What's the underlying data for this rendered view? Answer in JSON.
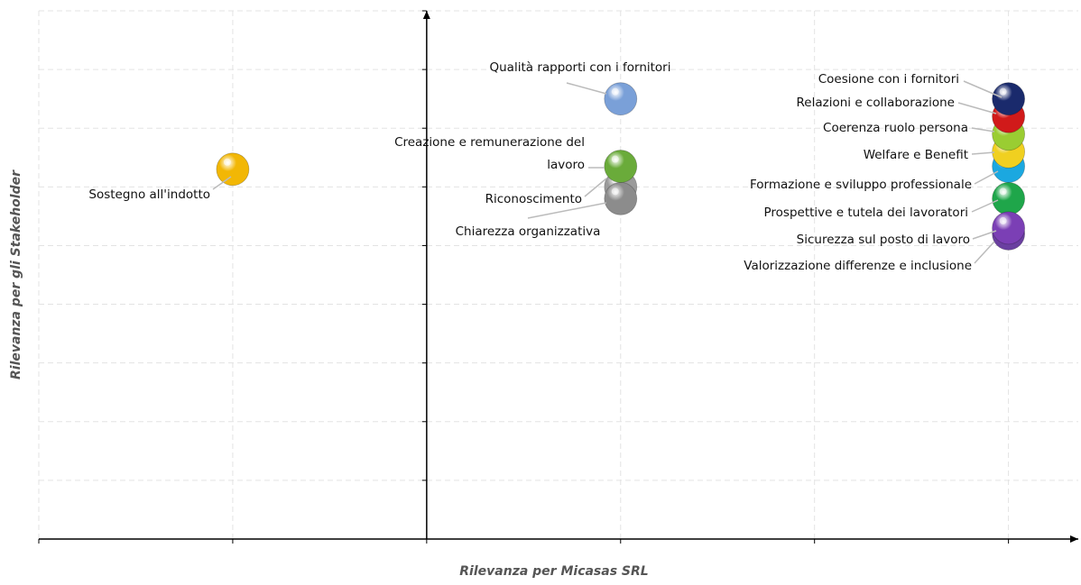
{
  "chart_data": {
    "type": "bubble",
    "x_label": "Rilevanza per Micasas SRL",
    "y_label": "Rilevanza per gli Stakeholder",
    "xlim": [
      0,
      5.36
    ],
    "ylim": [
      0,
      9
    ],
    "xticks": [
      0,
      1,
      2,
      3,
      4,
      5
    ],
    "yticks": [
      0,
      1,
      2,
      3,
      4,
      5,
      6,
      7,
      8,
      9
    ],
    "y_axis_crossing": 2,
    "grid": true,
    "labels": [
      "Sostegno all'indotto",
      "Qualità rapporti con i fornitori",
      "Riconoscimento",
      "Chiarezza organizzativa",
      "Creazione e remunerazione del lavoro",
      "Valorizzazione differenze e inclusione",
      "Prospettive e tutela dei lavoratori",
      "Sicurezza sul posto di lavoro",
      "Formazione e sviluppo professionale",
      "Welfare e Benefit",
      "Coerenza ruolo persona",
      "Relazioni e collaborazione",
      "Coesione con i fornitori"
    ],
    "x": [
      1,
      3,
      3,
      3,
      3,
      5,
      5,
      5,
      5,
      5,
      5,
      5,
      5
    ],
    "values": [
      6.3,
      7.5,
      6.0,
      5.8,
      6.35,
      5.2,
      5.8,
      5.3,
      6.35,
      6.6,
      6.9,
      7.2,
      7.5
    ],
    "colors": [
      "#f2b705",
      "#7aa0d8",
      "#9a9a9a",
      "#8c8c8c",
      "#6aab3a",
      "#6a3fa0",
      "#1fa64a",
      "#7b3fb5",
      "#1ba8e0",
      "#f0d020",
      "#9acd32",
      "#d11a1a",
      "#1a2a6c"
    ]
  }
}
